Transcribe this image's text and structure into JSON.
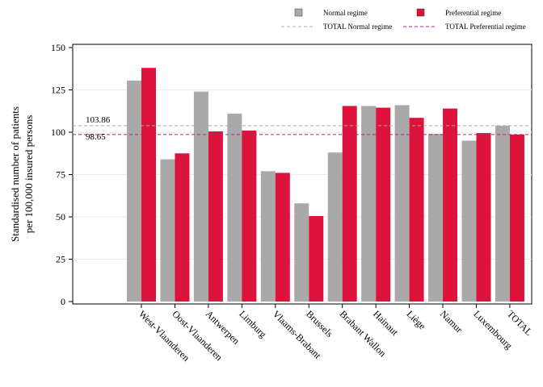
{
  "chart_data": {
    "type": "bar",
    "categories": [
      "West-Vlaanderen",
      "Oost-Vlaanderen",
      "Antwerpen",
      "Limburg",
      "Vlaams-Brabant",
      "Brussels",
      "Brabant Wallon",
      "Hainaut",
      "Liège",
      "Namur",
      "Luxembourg",
      "TOTAL"
    ],
    "series": [
      {
        "name": "Normal regime",
        "color": "#a9a9a9",
        "values": [
          130.5,
          84,
          124,
          111,
          77,
          58,
          88,
          115.5,
          116,
          99,
          95,
          103.86
        ]
      },
      {
        "name": "Preferential regime",
        "color": "#dc143c",
        "values": [
          138,
          87.5,
          100.5,
          101,
          76,
          50.5,
          115.5,
          114.5,
          108.5,
          114,
          99.5,
          98.65
        ]
      }
    ],
    "reference_lines": [
      {
        "name": "TOTAL Normal regime",
        "value": 103.86,
        "label": "103.86",
        "color": "#a9a9a9"
      },
      {
        "name": "TOTAL Preferential regime",
        "value": 98.65,
        "label": "98.65",
        "color": "#c71585"
      }
    ],
    "xlabel": "",
    "ylabel_lines": [
      "Standardised number of patients",
      "per 100,000 insured persons"
    ],
    "ylim": [
      0,
      150
    ],
    "yticks": [
      0,
      25,
      50,
      75,
      100,
      125,
      150
    ],
    "grid": true,
    "legend_position": "top"
  }
}
